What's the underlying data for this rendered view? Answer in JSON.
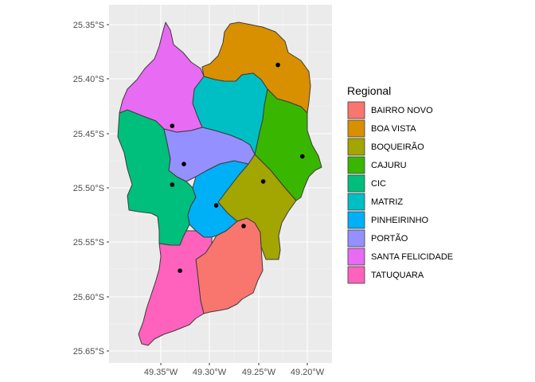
{
  "chart_data": {
    "type": "map",
    "xlabel": "",
    "ylabel": "",
    "legend": {
      "title": "Regional",
      "position": "right"
    },
    "x_ticks": [
      "49.35°W",
      "49.30°W",
      "49.25°W",
      "49.20°W"
    ],
    "y_ticks": [
      "25.35°S",
      "25.40°S",
      "25.45°S",
      "25.50°S",
      "25.55°S",
      "25.60°S",
      "25.65°S"
    ],
    "grid": true,
    "regions": [
      {
        "name": "BAIRRO NOVO",
        "color": "#F8766D",
        "centroid": [
          -49.265,
          -25.535
        ]
      },
      {
        "name": "BOA VISTA",
        "color": "#D89000",
        "centroid": [
          -49.23,
          -25.387
        ]
      },
      {
        "name": "BOQUEIRÃO",
        "color": "#A3A500",
        "centroid": [
          -49.245,
          -25.494
        ]
      },
      {
        "name": "CAJURU",
        "color": "#39B600",
        "centroid": [
          -49.205,
          -25.471
        ]
      },
      {
        "name": "CIC",
        "color": "#00BF7D",
        "centroid": [
          -49.338,
          -25.497
        ]
      },
      {
        "name": "MATRIZ",
        "color": "#00BFC4",
        "centroid": [
          -49.27,
          -25.43
        ]
      },
      {
        "name": "PINHEIRINHO",
        "color": "#00B0F6",
        "centroid": [
          -49.293,
          -25.516
        ]
      },
      {
        "name": "PORTÃO",
        "color": "#9590FF",
        "centroid": [
          -49.326,
          -25.478
        ]
      },
      {
        "name": "SANTA FELICIDADE",
        "color": "#E76BF3",
        "centroid": [
          -49.338,
          -25.443
        ]
      },
      {
        "name": "TATUQUARA",
        "color": "#FF62BC",
        "centroid": [
          -49.33,
          -25.576
        ]
      }
    ]
  }
}
